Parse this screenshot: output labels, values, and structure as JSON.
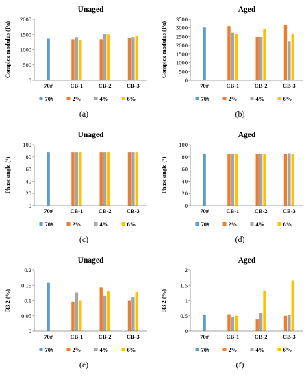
{
  "colors": {
    "70#": "#5b9bd5",
    "2%": "#ed7d31",
    "4%": "#a5a5a5",
    "6%": "#ffc000"
  },
  "chart_data": [
    {
      "panel": "(a)",
      "type": "bar",
      "title": "Unaged",
      "ylabel": "Complex modulus (Pa)",
      "ylim": [
        0,
        2000
      ],
      "yticks": [
        "0",
        "500",
        "1000",
        "1500",
        "2000"
      ],
      "categories": [
        "70#",
        "CB-1",
        "CB-2",
        "CB-3"
      ],
      "legend": [
        "70#",
        "2%",
        "4%",
        "6%"
      ],
      "series": [
        {
          "name": "70#",
          "values": [
            1360,
            null,
            null,
            null
          ]
        },
        {
          "name": "2%",
          "values": [
            null,
            1340,
            1340,
            1380
          ]
        },
        {
          "name": "4%",
          "values": [
            null,
            1410,
            1530,
            1410
          ]
        },
        {
          "name": "6%",
          "values": [
            null,
            1320,
            1500,
            1440
          ]
        }
      ]
    },
    {
      "panel": "(b)",
      "type": "bar",
      "title": "Aged",
      "ylabel": "Complex modulus (Pa)",
      "ylim": [
        0,
        3500
      ],
      "yticks": [
        "0",
        "500",
        "1000",
        "1500",
        "2000",
        "2500",
        "3000",
        "3500"
      ],
      "categories": [
        "70#",
        "CB-1",
        "CB-2",
        "CB-3"
      ],
      "legend": [
        "70#",
        "2%",
        "4%",
        "6%"
      ],
      "series": [
        {
          "name": "70#",
          "values": [
            3020,
            null,
            null,
            null
          ]
        },
        {
          "name": "2%",
          "values": [
            null,
            3100,
            2480,
            3160
          ]
        },
        {
          "name": "4%",
          "values": [
            null,
            2730,
            2480,
            2230
          ]
        },
        {
          "name": "6%",
          "values": [
            null,
            2650,
            2930,
            2660
          ]
        }
      ]
    },
    {
      "panel": "(c)",
      "type": "bar",
      "title": "Unaged",
      "ylabel": "Phase angle (°)",
      "ylim": [
        0,
        100
      ],
      "yticks": [
        "0",
        "20",
        "40",
        "60",
        "80",
        "100"
      ],
      "categories": [
        "70#",
        "CB-1",
        "CB-2",
        "CB-3"
      ],
      "legend": [
        "70#",
        "2%",
        "4%",
        "6%"
      ],
      "series": [
        {
          "name": "70#",
          "values": [
            87.5,
            null,
            null,
            null
          ]
        },
        {
          "name": "2%",
          "values": [
            null,
            87.5,
            87.5,
            87.5
          ]
        },
        {
          "name": "4%",
          "values": [
            null,
            87.5,
            87.5,
            87.5
          ]
        },
        {
          "name": "6%",
          "values": [
            null,
            87.5,
            87.5,
            87.5
          ]
        }
      ]
    },
    {
      "panel": "(d)",
      "type": "bar",
      "title": "Aged",
      "ylabel": "Phase angle (°)",
      "ylim": [
        0,
        100
      ],
      "yticks": [
        "0",
        "20",
        "40",
        "60",
        "80",
        "100"
      ],
      "categories": [
        "70#",
        "CB-1",
        "CB-2",
        "CB-3"
      ],
      "legend": [
        "70#",
        "2%",
        "4%",
        "6%"
      ],
      "series": [
        {
          "name": "70#",
          "values": [
            85,
            null,
            null,
            null
          ]
        },
        {
          "name": "2%",
          "values": [
            null,
            84.5,
            85.5,
            84.5
          ]
        },
        {
          "name": "4%",
          "values": [
            null,
            85.5,
            85.5,
            86
          ]
        },
        {
          "name": "6%",
          "values": [
            null,
            85.5,
            84.5,
            85
          ]
        }
      ]
    },
    {
      "panel": "(e)",
      "type": "bar",
      "title": "Unaged",
      "ylabel": "R3.2 (%)",
      "ylim": [
        0,
        0.2
      ],
      "yticks": [
        "0",
        "0.05",
        "0.1",
        "0.15",
        "0.2"
      ],
      "categories": [
        "70#",
        "CB-1",
        "CB-2",
        "CB-3"
      ],
      "legend": [
        "70#",
        "2%",
        "4%",
        "6%"
      ],
      "series": [
        {
          "name": "70#",
          "values": [
            0.158,
            null,
            null,
            null
          ]
        },
        {
          "name": "2%",
          "values": [
            null,
            0.097,
            0.143,
            0.1
          ]
        },
        {
          "name": "4%",
          "values": [
            null,
            0.127,
            0.115,
            0.11
          ]
        },
        {
          "name": "6%",
          "values": [
            null,
            0.1,
            0.13,
            0.128
          ]
        }
      ]
    },
    {
      "panel": "(f)",
      "type": "bar",
      "title": "Aged",
      "ylabel": "R3.2 (%)",
      "ylim": [
        0,
        2
      ],
      "yticks": [
        "0",
        "0.5",
        "1",
        "1.5",
        "2"
      ],
      "categories": [
        "70#",
        "CB-1",
        "CB-2",
        "CB-3"
      ],
      "legend": [
        "70#",
        "2%",
        "4%",
        "6%"
      ],
      "series": [
        {
          "name": "70#",
          "values": [
            0.52,
            null,
            null,
            null
          ]
        },
        {
          "name": "2%",
          "values": [
            null,
            0.55,
            0.38,
            0.5
          ]
        },
        {
          "name": "4%",
          "values": [
            null,
            0.47,
            0.6,
            0.52
          ]
        },
        {
          "name": "6%",
          "values": [
            null,
            0.5,
            1.33,
            1.65
          ]
        }
      ]
    }
  ]
}
